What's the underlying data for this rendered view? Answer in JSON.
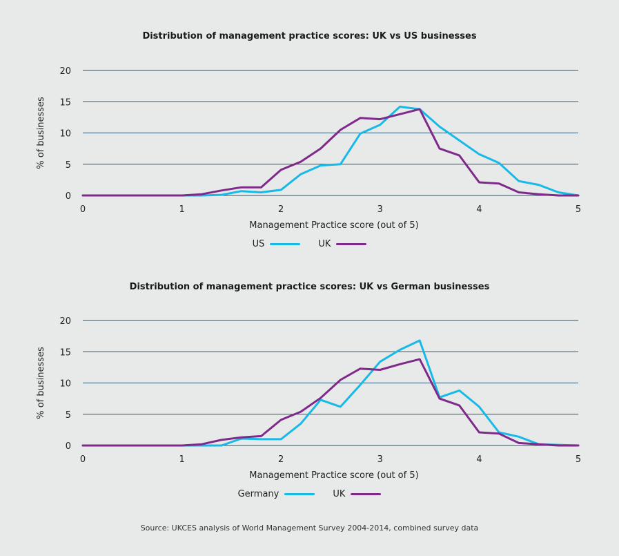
{
  "colors": {
    "series_blue": "#17b9e6",
    "series_purple": "#7f2a8a",
    "grid": "#2f5368",
    "background": "#e8e9e9"
  },
  "source": "Source: UKCES analysis of World Management Survey 2004-2014, combined survey data",
  "chart_data": [
    {
      "type": "line",
      "title": "Distribution of management practice scores: UK vs US businesses",
      "xlabel": "Management Practice score (out of 5)",
      "ylabel": "% of businesses",
      "xlim": [
        0,
        5
      ],
      "ylim": [
        0,
        20
      ],
      "xticks": [
        0,
        1,
        2,
        3,
        4,
        5
      ],
      "yticks": [
        0,
        5,
        10,
        15,
        20
      ],
      "grid": true,
      "legend_position": "bottom-center",
      "x": [
        0,
        0.2,
        0.4,
        0.6,
        0.8,
        1.0,
        1.2,
        1.4,
        1.6,
        1.8,
        2.0,
        2.2,
        2.4,
        2.6,
        2.8,
        3.0,
        3.2,
        3.4,
        3.6,
        3.8,
        4.0,
        4.2,
        4.4,
        4.6,
        4.8,
        5.0
      ],
      "series": [
        {
          "name": "US",
          "color": "#17b9e6",
          "values": [
            0,
            0,
            0,
            0,
            0,
            0,
            0,
            0.1,
            0.7,
            0.5,
            0.9,
            3.4,
            4.8,
            5.0,
            9.9,
            11.3,
            14.2,
            13.8,
            11.0,
            8.8,
            6.6,
            5.2,
            2.3,
            1.7,
            0.5,
            0
          ]
        },
        {
          "name": "UK",
          "color": "#7f2a8a",
          "values": [
            0,
            0,
            0,
            0,
            0,
            0,
            0.2,
            0.8,
            1.3,
            1.3,
            4.1,
            5.4,
            7.5,
            10.5,
            12.4,
            12.2,
            13.0,
            13.8,
            7.5,
            6.4,
            2.1,
            1.9,
            0.5,
            0.2,
            0,
            0
          ]
        }
      ]
    },
    {
      "type": "line",
      "title": "Distribution of management practice scores: UK vs German businesses",
      "xlabel": "Management Practice score (out of 5)",
      "ylabel": "% of businesses",
      "xlim": [
        0,
        5
      ],
      "ylim": [
        0,
        20
      ],
      "xticks": [
        0,
        1,
        2,
        3,
        4,
        5
      ],
      "yticks": [
        0,
        5,
        10,
        15,
        20
      ],
      "grid": true,
      "legend_position": "bottom-center",
      "x": [
        0,
        0.2,
        0.4,
        0.6,
        0.8,
        1.0,
        1.2,
        1.4,
        1.6,
        1.8,
        2.0,
        2.2,
        2.4,
        2.6,
        2.8,
        3.0,
        3.2,
        3.4,
        3.6,
        3.8,
        4.0,
        4.2,
        4.4,
        4.6,
        4.8,
        5.0
      ],
      "series": [
        {
          "name": "Germany",
          "color": "#17b9e6",
          "values": [
            0,
            0,
            0,
            0,
            0,
            0,
            0,
            0,
            1.1,
            1.0,
            1.0,
            3.5,
            7.3,
            6.2,
            9.7,
            13.4,
            15.3,
            16.8,
            7.7,
            8.8,
            6.2,
            2.1,
            1.4,
            0.2,
            0.1,
            0
          ]
        },
        {
          "name": "UK",
          "color": "#7f2a8a",
          "values": [
            0,
            0,
            0,
            0,
            0,
            0,
            0.2,
            0.9,
            1.3,
            1.5,
            4.1,
            5.4,
            7.6,
            10.5,
            12.3,
            12.1,
            13.0,
            13.8,
            7.5,
            6.4,
            2.1,
            1.9,
            0.4,
            0.2,
            0,
            0
          ]
        }
      ]
    }
  ]
}
